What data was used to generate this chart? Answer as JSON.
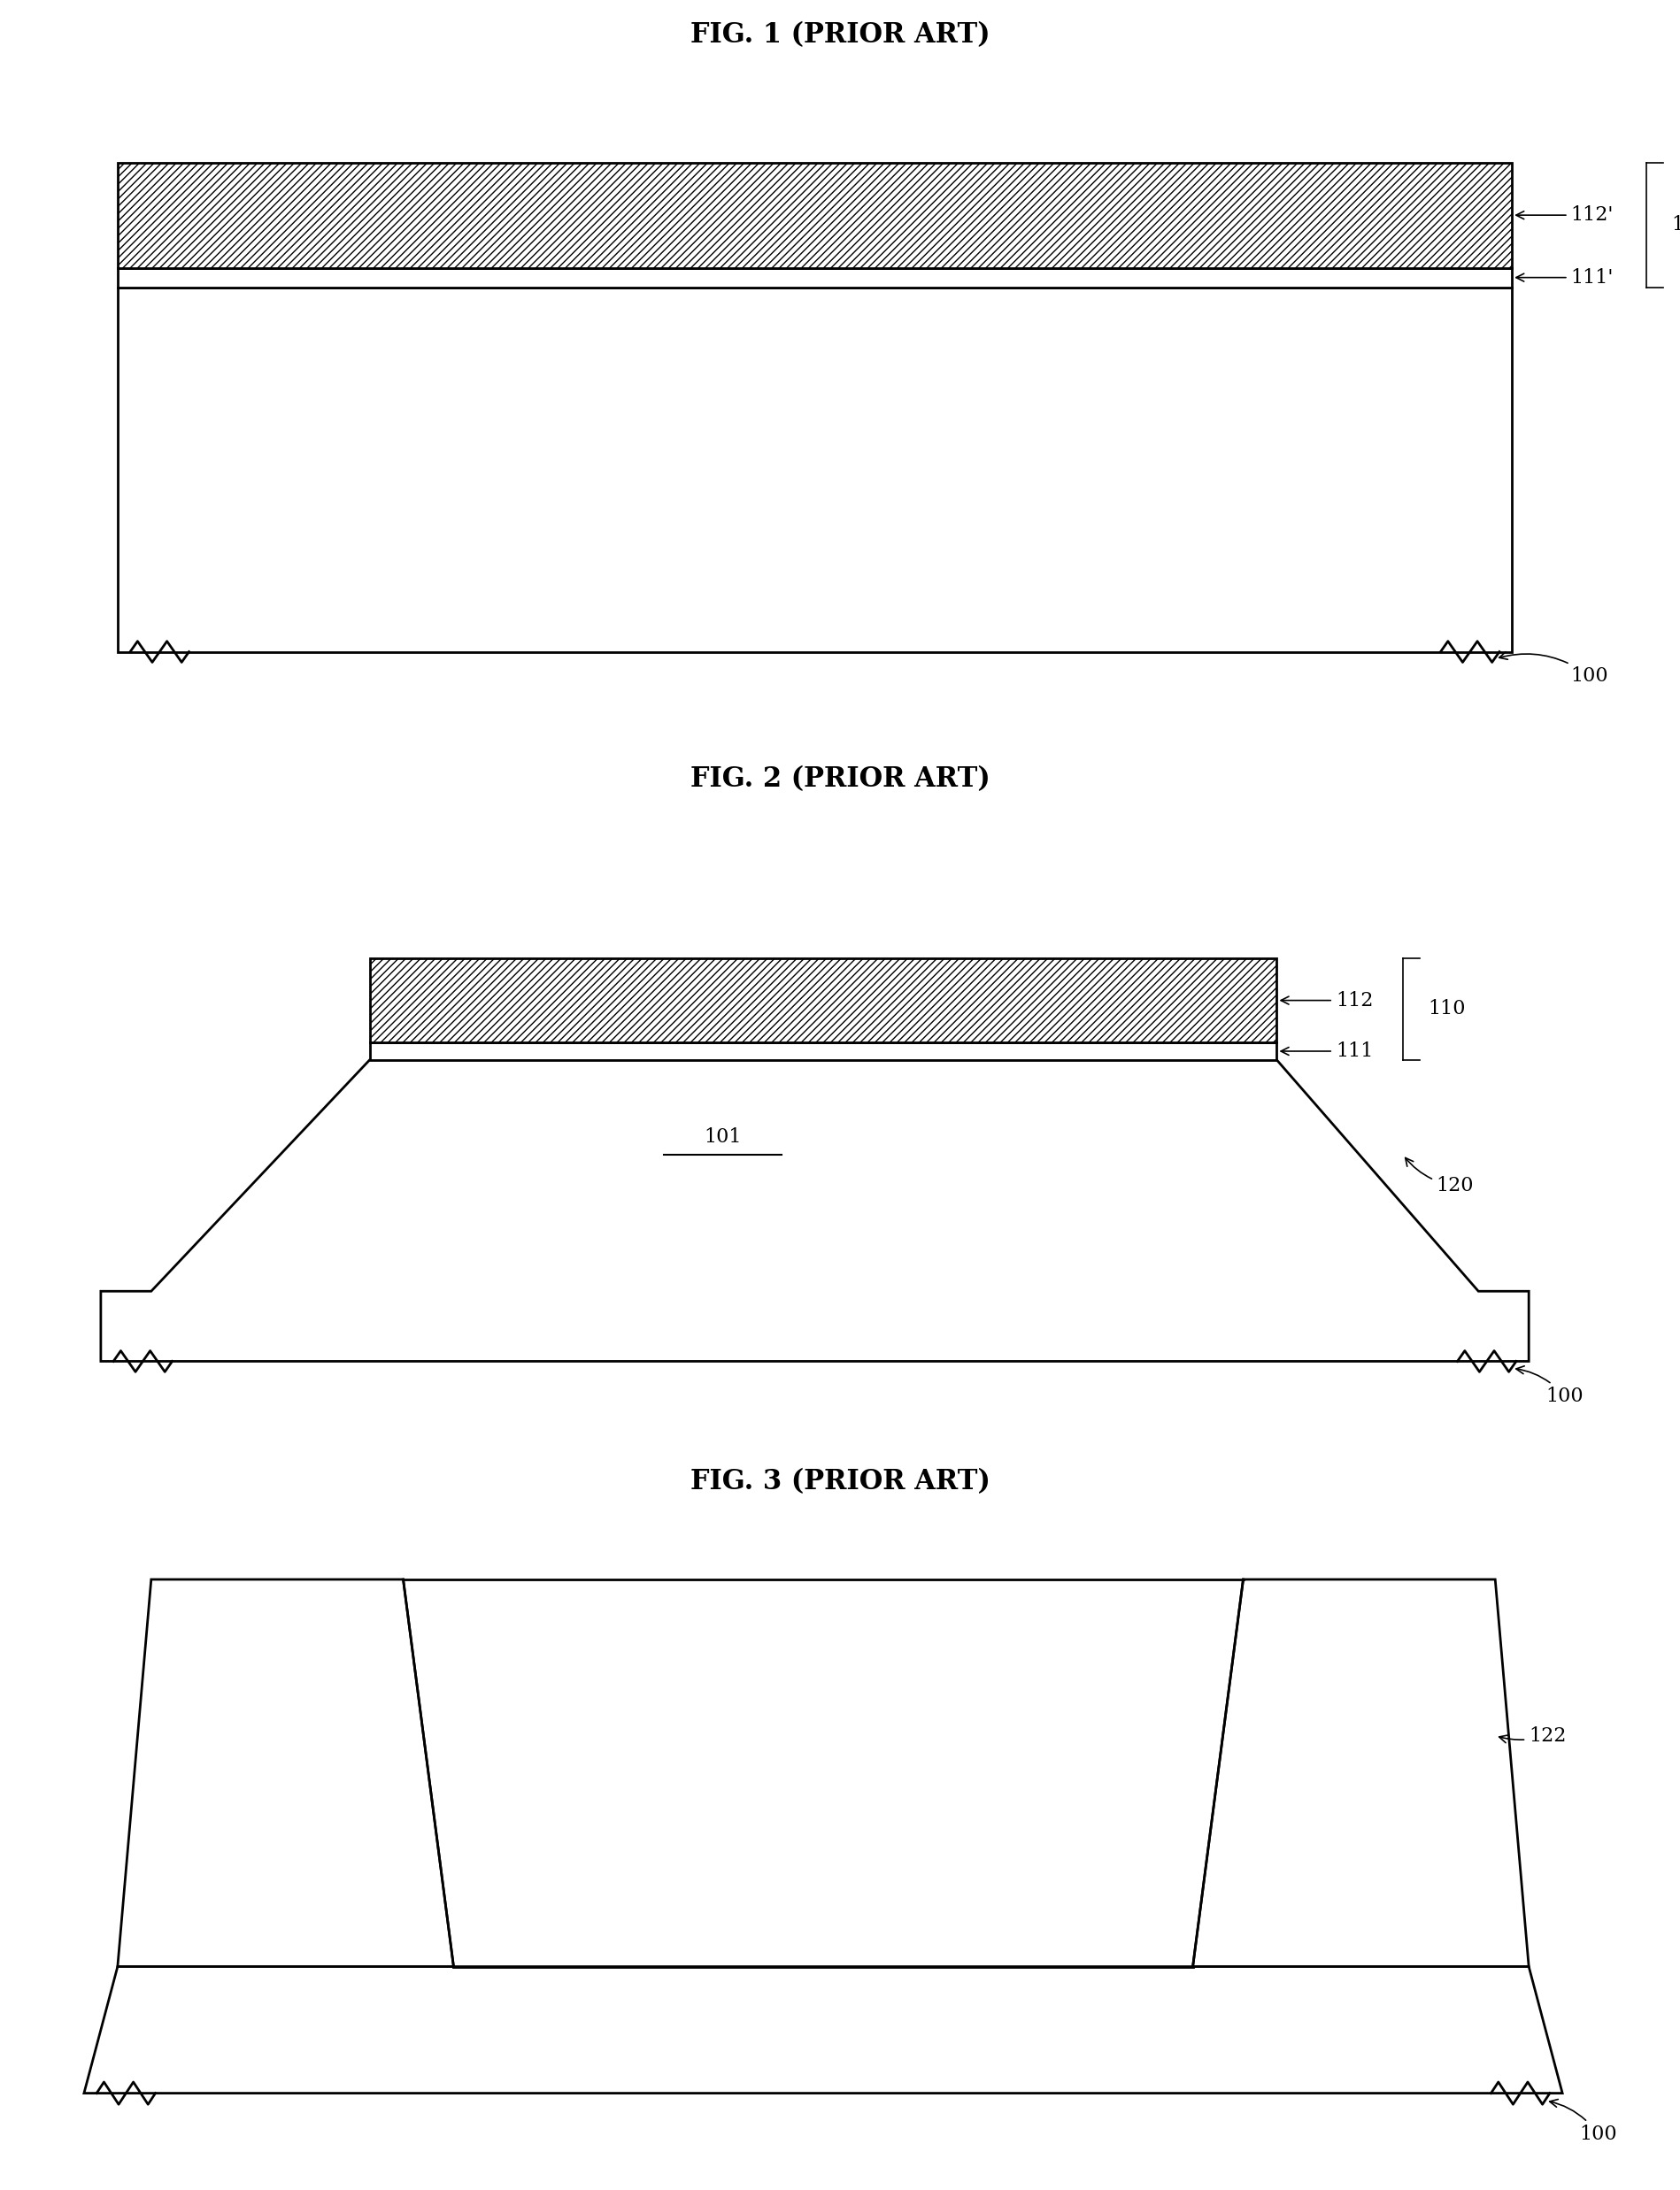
{
  "fig_titles": [
    "FIG. 1 (PRIOR ART)",
    "FIG. 2 (PRIOR ART)",
    "FIG. 3 (PRIOR ART)"
  ],
  "title_fontsize": 22,
  "label_fontsize": 16,
  "background_color": "#ffffff",
  "line_color": "#000000",
  "hatch_pattern": "////"
}
